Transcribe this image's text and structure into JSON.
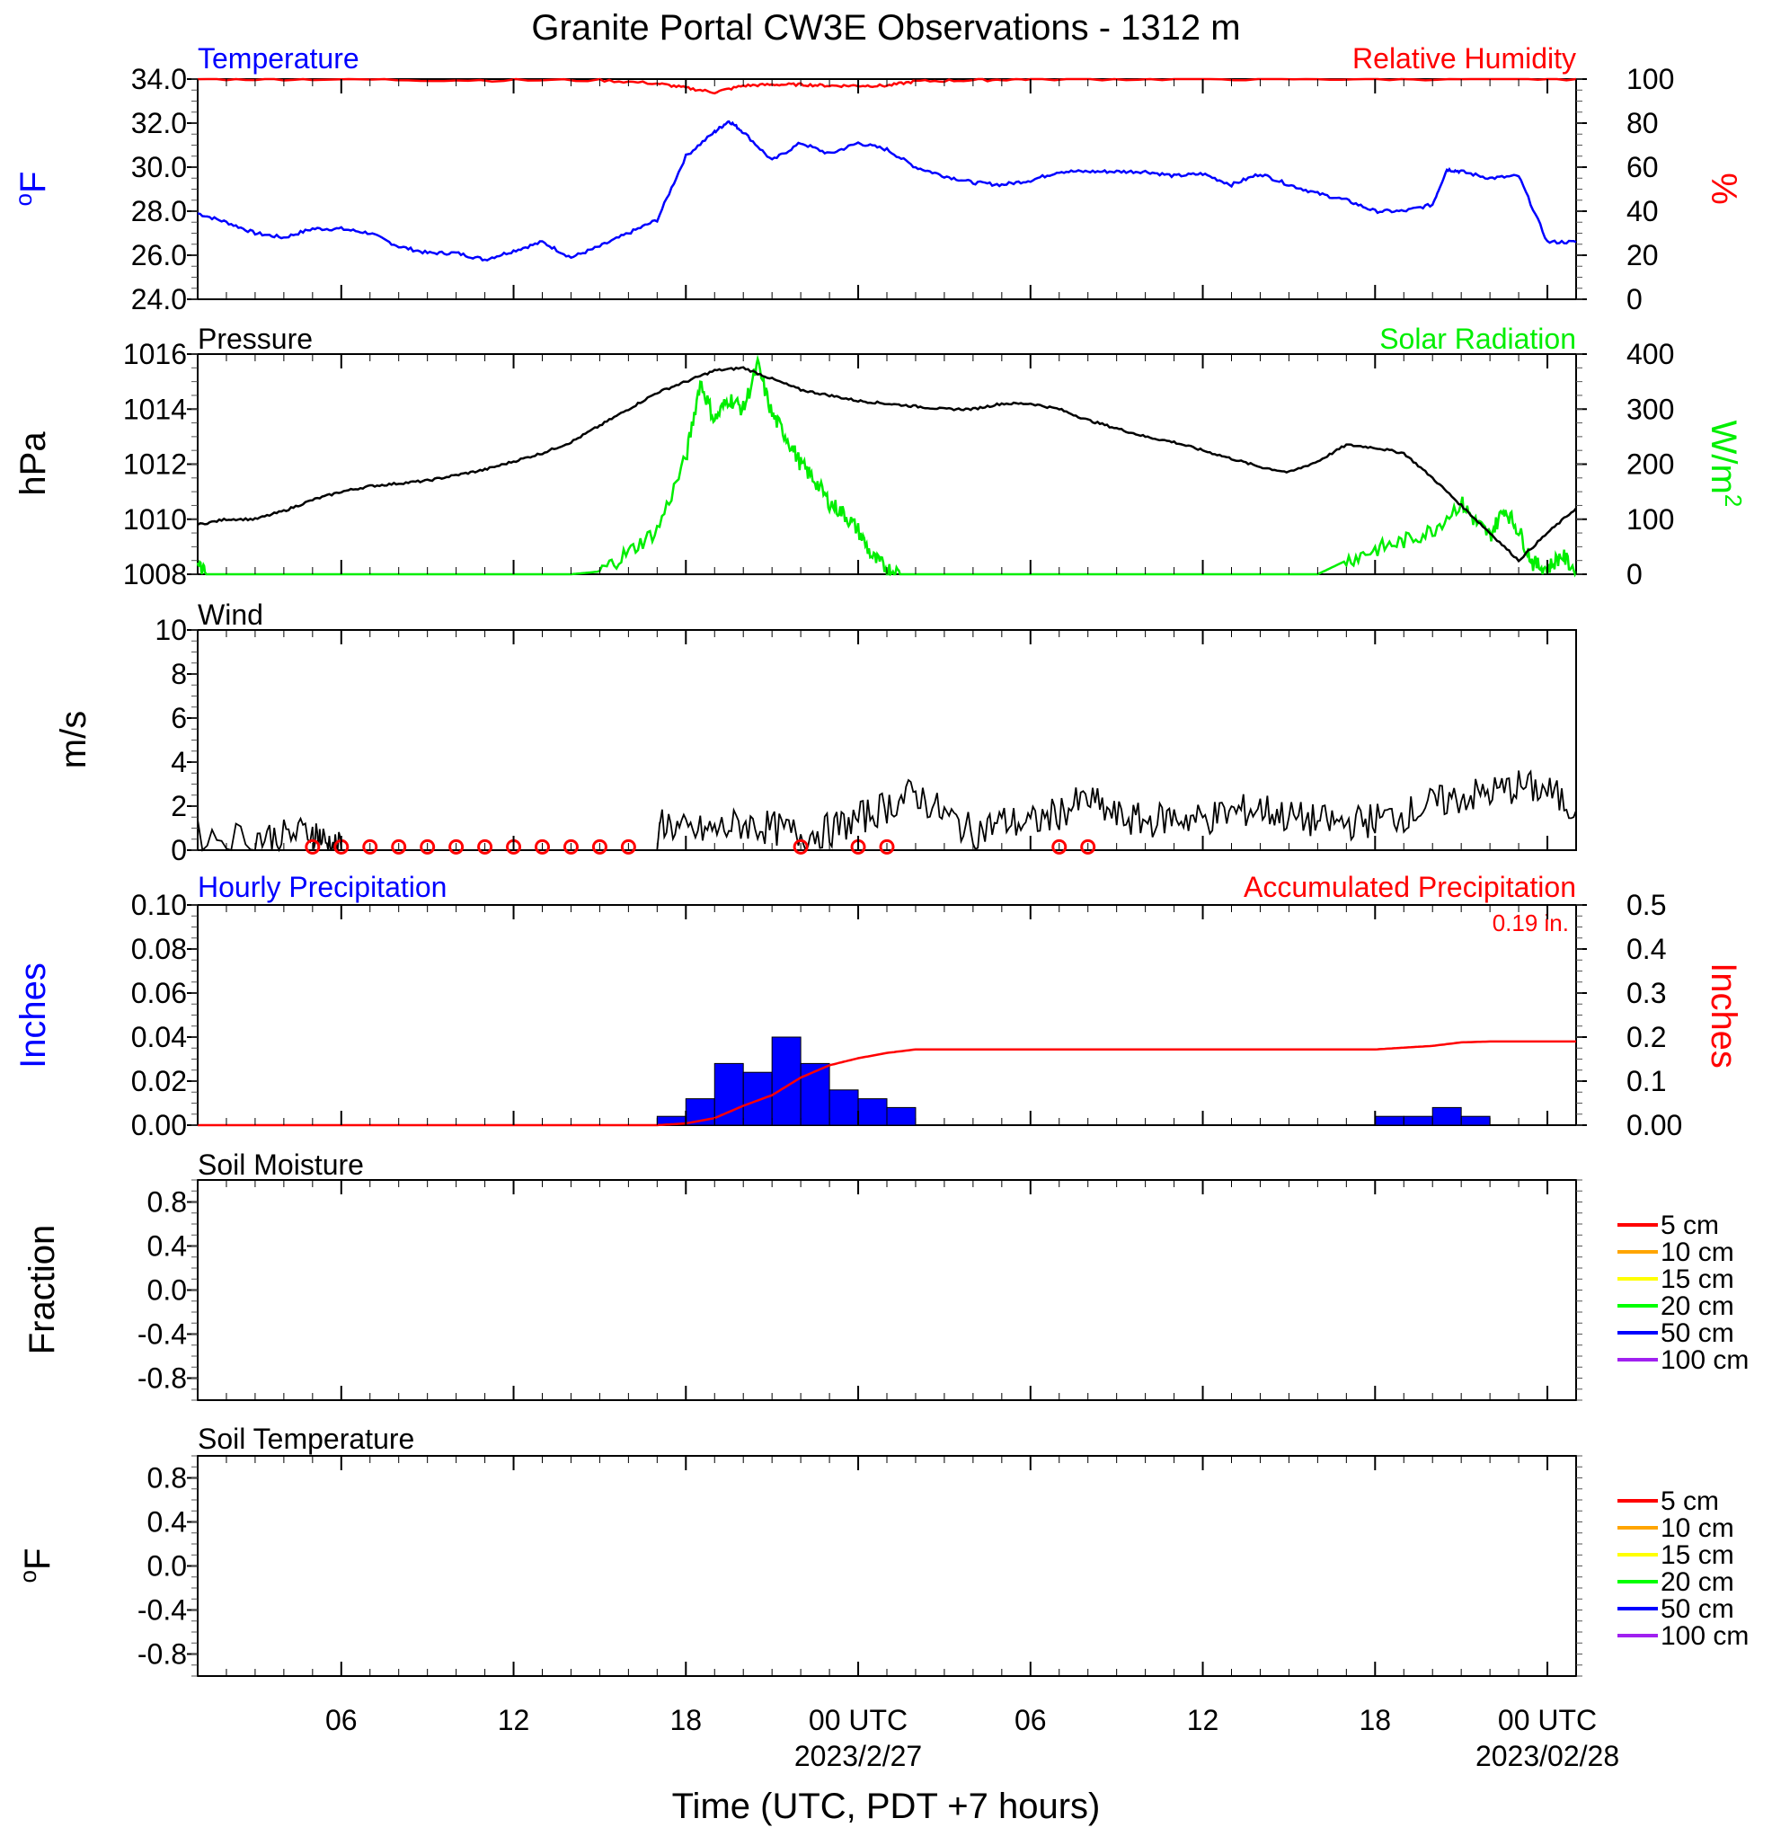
{
  "title": "Granite Portal CW3E Observations - 1312 m",
  "colors": {
    "temperature": "#0000ff",
    "humidity": "#ff0000",
    "pressure": "#000000",
    "solar": "#00ee00",
    "wind": "#000000",
    "wind_barb": "#ff0000",
    "hourly_precip": "#0000ff",
    "accum_precip": "#ff0000",
    "soil_5": "#ff0000",
    "soil_10": "#ffa500",
    "soil_15": "#ffff00",
    "soil_20": "#00ff00",
    "soil_50": "#0000ff",
    "soil_100": "#a020f0"
  },
  "xaxis": {
    "label": "Time (UTC, PDT +7 hours)",
    "range_hours": [
      1,
      49
    ],
    "ticks": [
      {
        "hour": 6,
        "label": "06",
        "sub": ""
      },
      {
        "hour": 12,
        "label": "12",
        "sub": ""
      },
      {
        "hour": 18,
        "label": "18",
        "sub": ""
      },
      {
        "hour": 24,
        "label": "00 UTC",
        "sub": "2023/2/27"
      },
      {
        "hour": 30,
        "label": "06",
        "sub": ""
      },
      {
        "hour": 36,
        "label": "12",
        "sub": ""
      },
      {
        "hour": 42,
        "label": "18",
        "sub": ""
      },
      {
        "hour": 48,
        "label": "00 UTC",
        "sub": "2023/02/28"
      }
    ]
  },
  "panels": {
    "temp": {
      "left_title": "Temperature",
      "right_title": "Relative Humidity",
      "left_unit": "oF",
      "right_unit": "%",
      "left_ticks": [
        "34.0",
        "32.0",
        "30.0",
        "28.0",
        "26.0",
        "24.0"
      ],
      "right_ticks": [
        "100",
        "80",
        "60",
        "40",
        "20",
        "0"
      ]
    },
    "pressure": {
      "left_title": "Pressure",
      "right_title": "Solar Radiation",
      "left_unit": "hPa",
      "right_unit": "W/m",
      "right_unit_sup": "2",
      "left_ticks": [
        "1016",
        "1014",
        "1012",
        "1010",
        "1008"
      ],
      "right_ticks": [
        "400",
        "300",
        "200",
        "100",
        "0"
      ]
    },
    "wind": {
      "left_title": "Wind",
      "left_unit": "m/s",
      "left_ticks": [
        "10",
        "8",
        "6",
        "4",
        "2",
        "0"
      ]
    },
    "precip": {
      "left_title": "Hourly Precipitation",
      "right_title": "Accumulated Precipitation",
      "left_unit": "Inches",
      "right_unit": "Inches",
      "total_label": "0.19 in.",
      "left_ticks": [
        "0.10",
        "0.08",
        "0.06",
        "0.04",
        "0.02",
        "0.00"
      ],
      "right_ticks": [
        "0.5",
        "0.4",
        "0.3",
        "0.2",
        "0.1",
        "0.00"
      ]
    },
    "soil_moisture": {
      "left_title": "Soil Moisture",
      "left_unit": "Fraction",
      "left_ticks": [
        "0.8",
        "0.4",
        "0.0",
        "-0.4",
        "-0.8"
      ],
      "legend": [
        "5 cm",
        "10 cm",
        "15 cm",
        "20 cm",
        "50 cm",
        "100 cm"
      ]
    },
    "soil_temp": {
      "left_title": "Soil Temperature",
      "left_unit": "oF",
      "left_ticks": [
        "0.8",
        "0.4",
        "0.0",
        "-0.4",
        "-0.8"
      ],
      "legend": [
        "5 cm",
        "10 cm",
        "15 cm",
        "20 cm",
        "50 cm",
        "100 cm"
      ]
    }
  },
  "chart_data": [
    {
      "type": "line",
      "title": "Temperature",
      "ylabel": "oF",
      "ylim": [
        24,
        34
      ],
      "series": [
        {
          "name": "Temperature",
          "x": [
            1,
            2,
            3,
            4,
            5,
            6,
            7,
            8,
            9,
            10,
            11,
            12,
            13,
            14,
            15,
            16,
            17,
            18,
            19,
            19.5,
            20,
            21,
            22,
            23,
            24,
            25,
            26,
            27,
            28,
            29,
            30,
            31,
            32,
            33,
            34,
            35,
            36,
            37,
            38,
            39,
            40,
            41,
            42,
            43,
            44,
            44.5,
            45,
            46,
            47,
            48,
            49
          ],
          "values": [
            27.9,
            27.5,
            27.0,
            26.8,
            27.2,
            27.2,
            27.0,
            26.4,
            26.1,
            26.1,
            25.8,
            26.2,
            26.6,
            25.9,
            26.4,
            27.0,
            27.6,
            30.5,
            31.6,
            32.1,
            31.6,
            30.3,
            31.1,
            30.6,
            31.1,
            30.8,
            30.0,
            29.6,
            29.3,
            29.2,
            29.4,
            29.8,
            29.8,
            29.8,
            29.8,
            29.6,
            29.7,
            29.2,
            29.7,
            29.2,
            28.8,
            28.5,
            28.0,
            28.0,
            28.3,
            29.9,
            29.8,
            29.5,
            29.6,
            26.6,
            26.6
          ]
        }
      ],
      "y2label": "%",
      "y2lim": [
        0,
        100
      ],
      "series2": [
        {
          "name": "Relative Humidity",
          "x": [
            1,
            5,
            10,
            15,
            17,
            18,
            19,
            20,
            21,
            22,
            23,
            24,
            25,
            26,
            28,
            30,
            35,
            40,
            45,
            49
          ],
          "values": [
            100,
            100,
            99.5,
            99.5,
            98,
            96,
            94,
            97,
            97.5,
            97.5,
            97,
            97,
            97,
            99,
            99.5,
            100,
            100,
            100,
            100,
            100
          ]
        }
      ]
    },
    {
      "type": "line",
      "title": "Pressure",
      "ylabel": "hPa",
      "ylim": [
        1008,
        1016
      ],
      "series": [
        {
          "name": "Pressure",
          "x": [
            1,
            2,
            3,
            4,
            5,
            6,
            7,
            8,
            9,
            10,
            11,
            12,
            13,
            14,
            15,
            16,
            17,
            18,
            19,
            20,
            21,
            22,
            23,
            24,
            25,
            26,
            27,
            28,
            29,
            30,
            31,
            32,
            33,
            34,
            35,
            36,
            37,
            38,
            39,
            40,
            41,
            42,
            43,
            44,
            45,
            46,
            47,
            48,
            49
          ],
          "values": [
            1009.8,
            1010.0,
            1010.0,
            1010.3,
            1010.7,
            1011.0,
            1011.2,
            1011.3,
            1011.4,
            1011.6,
            1011.8,
            1012.1,
            1012.4,
            1012.8,
            1013.4,
            1014.0,
            1014.6,
            1015.0,
            1015.4,
            1015.5,
            1015.1,
            1014.7,
            1014.5,
            1014.3,
            1014.2,
            1014.1,
            1014.0,
            1014.0,
            1014.2,
            1014.2,
            1014.0,
            1013.6,
            1013.3,
            1013.0,
            1012.8,
            1012.5,
            1012.2,
            1011.9,
            1011.7,
            1012.1,
            1012.7,
            1012.6,
            1012.4,
            1011.5,
            1010.5,
            1009.5,
            1008.5,
            1009.5,
            1010.4
          ]
        }
      ],
      "y2label": "W/m2",
      "y2lim": [
        0,
        400
      ],
      "series2": [
        {
          "name": "Solar Radiation",
          "x": [
            1,
            1.3,
            14,
            15,
            16,
            17,
            18,
            18.5,
            19,
            19.5,
            20,
            20.5,
            21,
            21.5,
            22,
            22.5,
            23,
            23.5,
            24,
            24.5,
            25,
            25.5,
            40,
            41,
            42,
            43,
            44,
            45,
            45.5,
            46,
            46.5,
            47,
            47.5,
            48,
            48.5,
            49
          ],
          "values": [
            15,
            0,
            0,
            5,
            40,
            80,
            210,
            350,
            280,
            320,
            300,
            380,
            290,
            250,
            200,
            170,
            130,
            110,
            80,
            30,
            10,
            0,
            0,
            25,
            45,
            60,
            80,
            130,
            95,
            70,
            120,
            80,
            20,
            10,
            35,
            5
          ]
        }
      ]
    },
    {
      "type": "line",
      "title": "Wind",
      "ylabel": "m/s",
      "ylim": [
        0,
        10
      ],
      "series": [
        {
          "name": "Wind",
          "x": [
            1,
            3,
            4,
            5,
            5.5,
            6,
            10,
            15,
            17,
            17.1,
            18,
            19,
            20,
            21,
            22,
            23,
            24,
            25,
            26,
            27,
            28,
            29,
            30,
            31,
            32,
            33,
            34,
            35,
            36,
            37,
            38,
            39,
            40,
            41,
            42,
            43,
            44,
            45,
            46,
            47,
            48,
            49
          ],
          "values": [
            0.6,
            0.6,
            0.6,
            0.9,
            0.3,
            0,
            0,
            0,
            0,
            1.4,
            0.8,
            0.9,
            1.2,
            1.0,
            0.7,
            0.9,
            1.4,
            2.0,
            2.6,
            1.6,
            0.8,
            1.3,
            1.2,
            1.7,
            2.3,
            1.5,
            1.3,
            1.5,
            1.4,
            1.7,
            1.9,
            1.5,
            1.3,
            1.2,
            1.4,
            1.6,
            2.1,
            2.4,
            2.6,
            2.9,
            2.7,
            1.8
          ]
        }
      ],
      "calm_markers_hours": [
        5,
        6,
        7,
        8,
        9,
        10,
        11,
        12,
        13,
        14,
        15,
        16,
        22,
        24,
        25,
        31,
        32
      ]
    },
    {
      "type": "bar",
      "title": "Hourly Precipitation",
      "ylabel": "Inches",
      "ylim": [
        0,
        0.1
      ],
      "x": [
        17.5,
        18.5,
        19.5,
        20.5,
        21.5,
        22.5,
        23.5,
        24.5,
        25.5,
        42.5,
        43.5,
        44.5,
        45.5
      ],
      "values": [
        0.004,
        0.012,
        0.028,
        0.024,
        0.04,
        0.028,
        0.016,
        0.012,
        0.008,
        0.004,
        0.004,
        0.008,
        0.004
      ],
      "y2label": "Inches",
      "y2lim": [
        0,
        0.5
      ],
      "series2": [
        {
          "name": "Accumulated Precipitation",
          "x": [
            1,
            17,
            18,
            19,
            20,
            21,
            22,
            23,
            24,
            25,
            26,
            27,
            28,
            42,
            43,
            44,
            45,
            46,
            49
          ],
          "values": [
            0,
            0,
            0.004,
            0.016,
            0.044,
            0.068,
            0.108,
            0.136,
            0.152,
            0.164,
            0.172,
            0.172,
            0.172,
            0.172,
            0.176,
            0.18,
            0.188,
            0.19,
            0.19
          ]
        }
      ]
    },
    {
      "type": "line",
      "title": "Soil Moisture",
      "ylabel": "Fraction",
      "ylim": [
        -1,
        1
      ],
      "series": []
    },
    {
      "type": "line",
      "title": "Soil Temperature",
      "ylabel": "oF",
      "ylim": [
        -1,
        1
      ],
      "series": []
    }
  ]
}
